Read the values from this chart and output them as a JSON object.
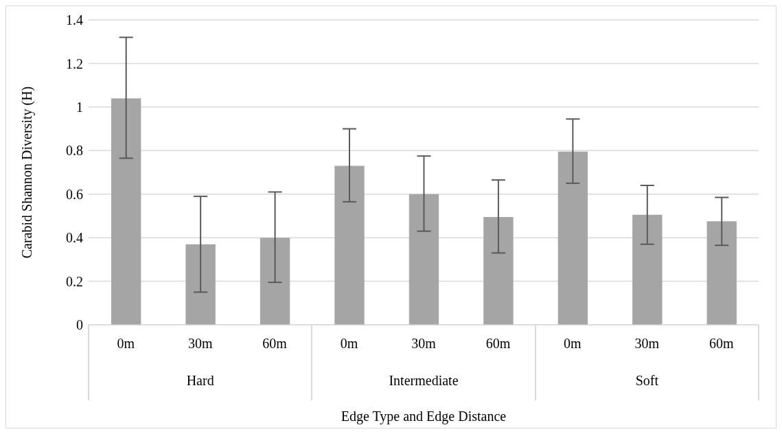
{
  "chart_data": {
    "type": "bar",
    "xlabel": "Edge Type and Edge Distance",
    "ylabel": "Carabid Shannon Diversity (H)",
    "categories": [
      "0m",
      "30m",
      "60m",
      "0m",
      "30m",
      "60m",
      "0m",
      "30m",
      "60m"
    ],
    "values": [
      1.04,
      0.37,
      0.4,
      0.73,
      0.6,
      0.495,
      0.795,
      0.505,
      0.475
    ],
    "errors": [
      [
        0.765,
        1.32
      ],
      [
        0.15,
        0.59
      ],
      [
        0.195,
        0.61
      ],
      [
        0.565,
        0.9
      ],
      [
        0.43,
        0.775
      ],
      [
        0.33,
        0.665
      ],
      [
        0.65,
        0.945
      ],
      [
        0.37,
        0.64
      ],
      [
        0.365,
        0.585
      ]
    ],
    "color": "#a5a5a5",
    "annotations": [
      "Hard",
      "Intermediate",
      "Soft"
    ],
    "ylim": [
      0,
      1.4
    ],
    "yticks": [
      0,
      0.2,
      0.4,
      0.6,
      0.8,
      1,
      1.2,
      1.4
    ],
    "grid": "y",
    "legend": false
  }
}
